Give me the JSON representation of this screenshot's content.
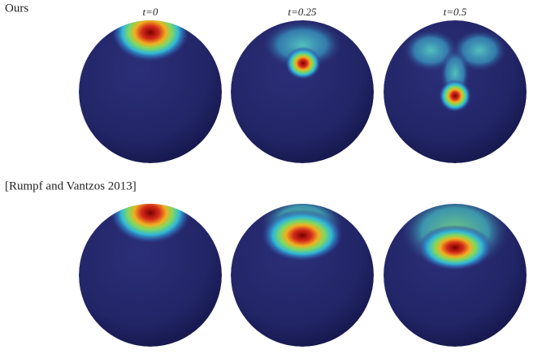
{
  "rows": [
    {
      "label": "Ours"
    },
    {
      "label": "[Rumpf and Vantzos 2013]"
    }
  ],
  "columns": [
    {
      "label": "t=0"
    },
    {
      "label": "t=0.25"
    },
    {
      "label": "t=0.5"
    }
  ]
}
